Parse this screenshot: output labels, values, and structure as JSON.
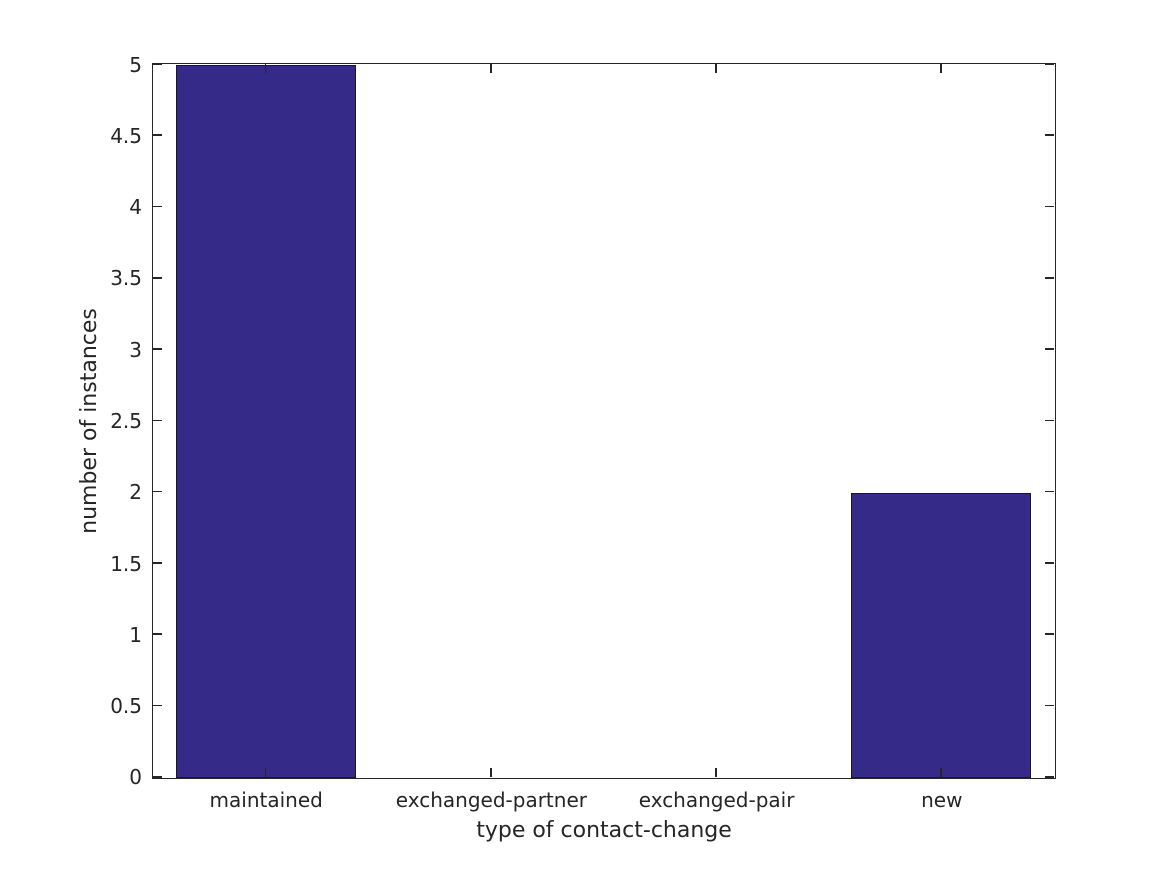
{
  "chart_data": {
    "type": "bar",
    "title": "",
    "xlabel": "type of contact-change",
    "ylabel": "number of instances",
    "categories": [
      "maintained",
      "exchanged-partner",
      "exchanged-pair",
      "new"
    ],
    "values": [
      5,
      0,
      0,
      2
    ],
    "ylim": [
      0,
      5
    ],
    "ytick_step": 0.5,
    "ytick_labels": [
      "0",
      "0.5",
      "1",
      "1.5",
      "2",
      "2.5",
      "3",
      "3.5",
      "4",
      "4.5",
      "5"
    ],
    "grid": false,
    "legend_position": "none",
    "bar_width_fraction": 0.8,
    "bar_color": "#352a87",
    "bar_edge_color": "#1a1a1a",
    "axis_color": "#262626",
    "background_color": "#ffffff"
  }
}
